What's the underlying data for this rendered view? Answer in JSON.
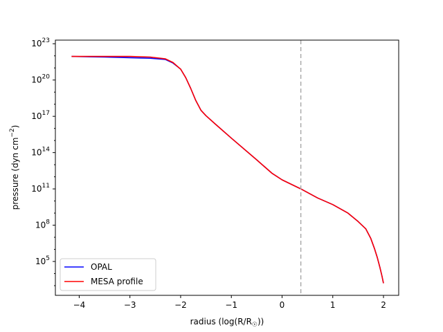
{
  "chart_data": {
    "type": "line",
    "title": "",
    "xlabel": "radius (log(R/R",
    "xlabel_sub": "☉",
    "xlabel_end": "))",
    "ylabel": "pressure (dyn cm",
    "ylabel_sup": "−2",
    "ylabel_end": ")",
    "xlim": [
      -4.47,
      2.3
    ],
    "ylim_log10": [
      2.2,
      23.3
    ],
    "yscale": "log",
    "grid": false,
    "legend_position": "lower-left",
    "x_ticks": [
      -4,
      -3,
      -2,
      -1,
      0,
      1,
      2
    ],
    "x_tick_labels": [
      "−4",
      "−3",
      "−2",
      "−1",
      "0",
      "1",
      "2"
    ],
    "y_ticks_log10": [
      5,
      8,
      11,
      14,
      17,
      20,
      23
    ],
    "y_tick_base": "10",
    "y_tick_exponents": [
      "5",
      "8",
      "11",
      "14",
      "17",
      "20",
      "23"
    ],
    "vline": {
      "x": 0.37,
      "color": "#aaaaaa",
      "style": "dashed"
    },
    "series": [
      {
        "name": "OPAL",
        "color": "#0000ff",
        "x": [
          -4.15,
          -3.5,
          -3.0,
          -2.6,
          -2.3,
          -2.15,
          -2.0,
          -1.9,
          -1.8,
          -1.7,
          -1.6,
          -1.5,
          -1.3,
          -1.0,
          -0.5,
          -0.2,
          0.0,
          0.37,
          0.7,
          1.0,
          1.3,
          1.5,
          1.65,
          1.75,
          1.82,
          1.88,
          1.93,
          1.97,
          2.0
        ],
        "y_log10": [
          21.95,
          21.9,
          21.85,
          21.8,
          21.7,
          21.4,
          20.9,
          20.2,
          19.3,
          18.3,
          17.5,
          17.05,
          16.3,
          15.2,
          13.4,
          12.3,
          11.75,
          11.0,
          10.25,
          9.7,
          9.0,
          8.3,
          7.7,
          6.9,
          6.1,
          5.3,
          4.5,
          3.8,
          3.2
        ]
      },
      {
        "name": "MESA profile",
        "color": "#ff0000",
        "x": [
          -4.15,
          -3.5,
          -3.0,
          -2.6,
          -2.3,
          -2.15,
          -2.0,
          -1.9,
          -1.8,
          -1.7,
          -1.6,
          -1.5,
          -1.3,
          -1.0,
          -0.5,
          -0.2,
          0.0,
          0.37,
          0.7,
          1.0,
          1.3,
          1.5,
          1.65,
          1.75,
          1.82,
          1.88,
          1.93,
          1.97,
          2.0
        ],
        "y_log10": [
          21.95,
          21.95,
          21.95,
          21.9,
          21.75,
          21.45,
          20.9,
          20.2,
          19.3,
          18.3,
          17.5,
          17.05,
          16.3,
          15.2,
          13.4,
          12.3,
          11.75,
          11.0,
          10.25,
          9.7,
          9.0,
          8.3,
          7.7,
          6.9,
          6.1,
          5.3,
          4.5,
          3.8,
          3.2
        ]
      }
    ]
  }
}
